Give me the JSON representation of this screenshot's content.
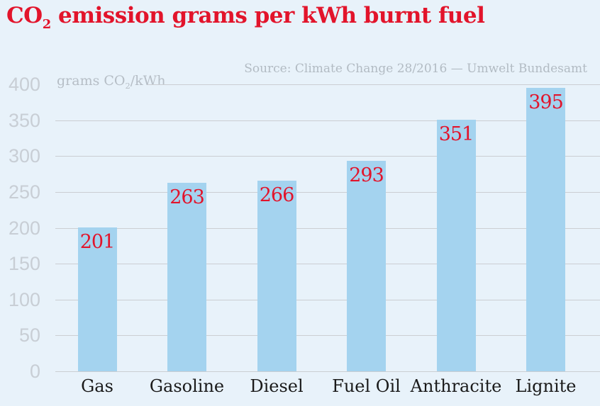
{
  "title": {
    "prefix": "CO",
    "subscript": "2",
    "rest": " emission grams per kWh burnt fuel"
  },
  "source": "Source: Climate Change 28/2016 — Umwelt Bundesamt",
  "unit_label": {
    "prefix": "grams CO",
    "subscript": "2",
    "suffix": "/kWh"
  },
  "colors": {
    "background": "#e8f2fa",
    "bar_fill": "#a4d3ef",
    "accent_red": "#e2142b",
    "gridline": "#cbced2",
    "tick_text": "#c8ced5",
    "muted_text": "#b2bbc3",
    "category_text": "#1a1a1a"
  },
  "chart_data": {
    "type": "bar",
    "title": "CO2 emission grams per kWh burnt fuel",
    "ylabel": "grams CO2/kWh",
    "source": "Source: Climate Change 28/2016 — Umwelt Bundesamt",
    "categories": [
      "Gas",
      "Gasoline",
      "Diesel",
      "Fuel Oil",
      "Anthracite",
      "Lignite"
    ],
    "values": [
      201,
      263,
      266,
      293,
      351,
      395
    ],
    "ylim": [
      0,
      400
    ],
    "ytick_step": 50,
    "yticks": [
      400,
      350,
      300,
      250,
      200,
      150,
      100,
      50,
      0
    ],
    "grid": true,
    "legend": false,
    "value_labels": "inside-top"
  }
}
